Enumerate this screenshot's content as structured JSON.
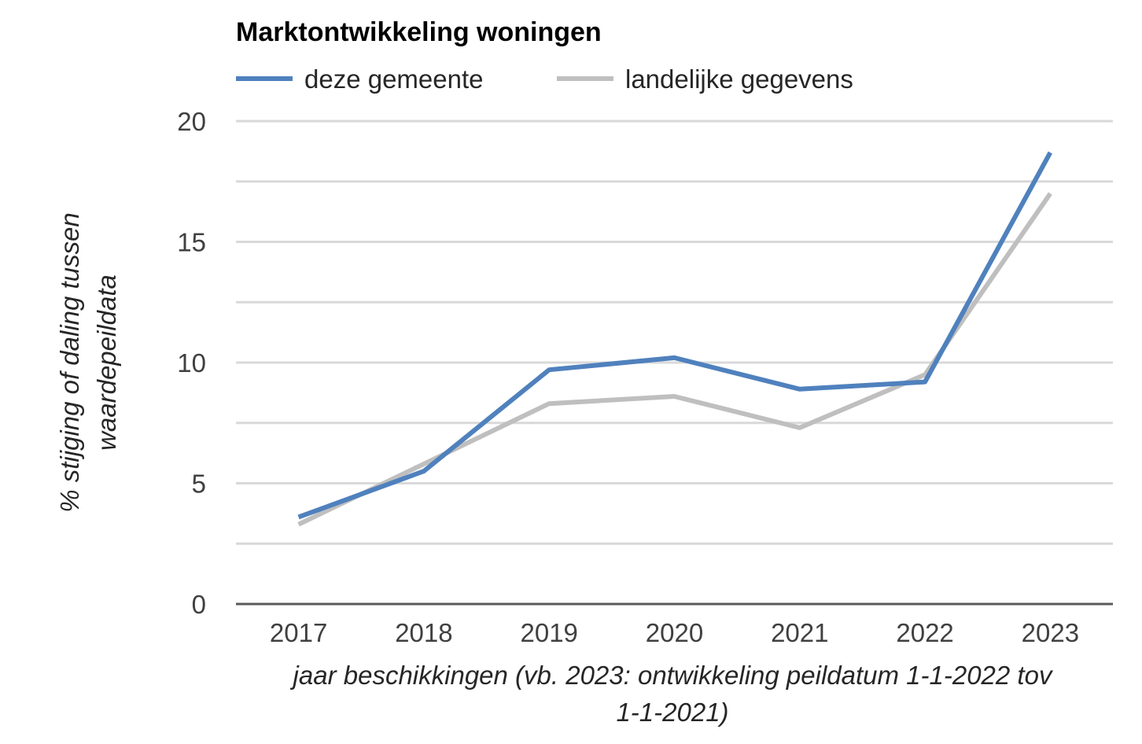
{
  "chart_data": {
    "type": "line",
    "title": "Marktontwikkeling woningen",
    "categories": [
      "2017",
      "2018",
      "2019",
      "2020",
      "2021",
      "2022",
      "2023"
    ],
    "series": [
      {
        "name": "deze gemeente",
        "color": "#4f81bd",
        "values": [
          3.6,
          5.5,
          9.7,
          10.2,
          8.9,
          9.2,
          18.7
        ]
      },
      {
        "name": "landelijke gegevens",
        "color": "#bfbfbf",
        "values": [
          3.3,
          5.8,
          8.3,
          8.6,
          7.3,
          9.5,
          17.0
        ]
      }
    ],
    "ylim": [
      0,
      20
    ],
    "yticks": [
      "0",
      "5",
      "10",
      "15",
      "20"
    ],
    "xlabel_lines": [
      "jaar beschikkingen (vb. 2023: ontwikkeling peildatum 1-1-2022 tov",
      "1-1-2021)"
    ],
    "ylabel_lines": [
      "% stijging of daling tussen",
      "waardepeildata"
    ],
    "grid": true,
    "legend_position": "top"
  }
}
